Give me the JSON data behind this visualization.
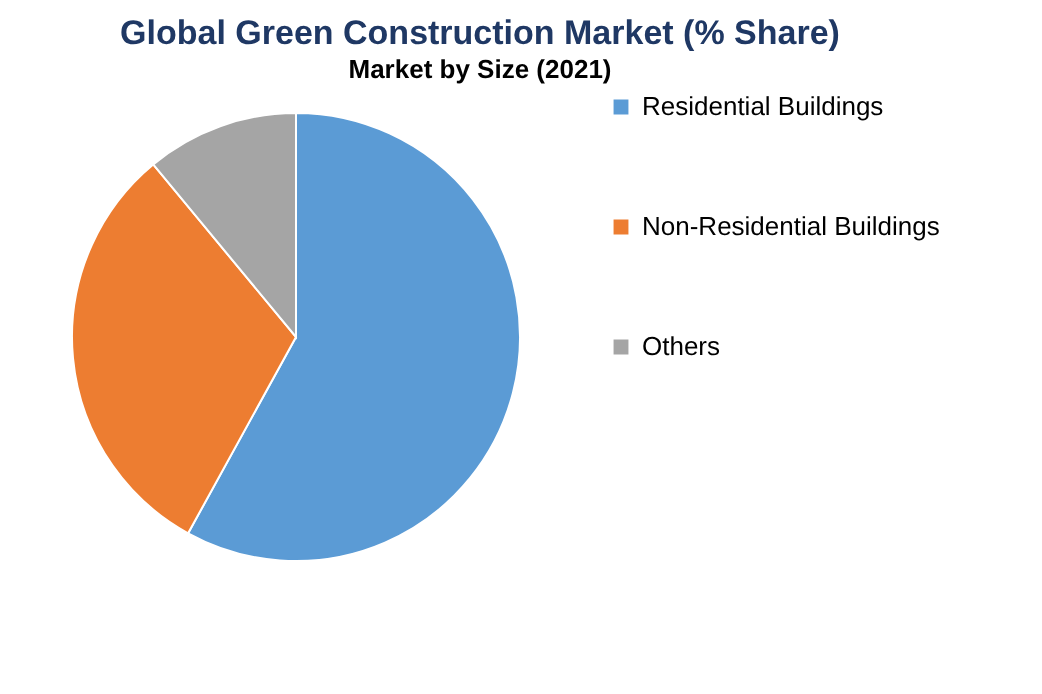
{
  "chart_data": {
    "type": "pie",
    "title": "Global Green Construction Market (% Share)",
    "subtitle": "Market by Size (2021)",
    "categories": [
      "Residential Buildings",
      "Non-Residential Buildings",
      "Others"
    ],
    "values": [
      58,
      31,
      11
    ],
    "colors": [
      "#5b9bd5",
      "#ed7d31",
      "#a5a5a5"
    ],
    "legend": "right"
  }
}
